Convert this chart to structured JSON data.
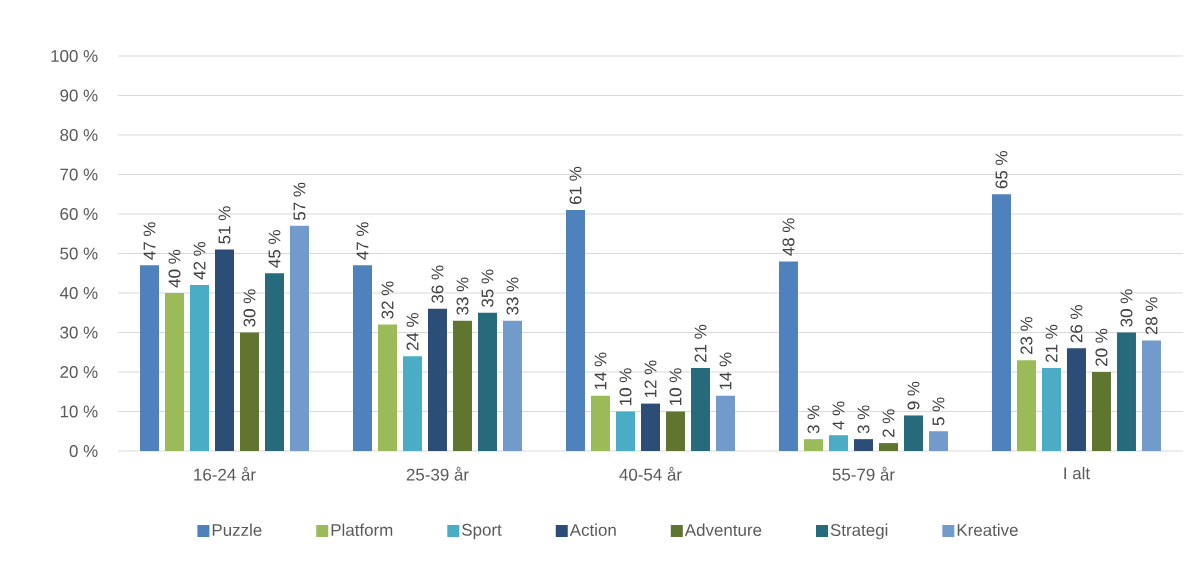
{
  "chart_data": {
    "type": "bar",
    "categories": [
      "16-24 år",
      "25-39 år",
      "40-54 år",
      "55-79 år",
      "I alt"
    ],
    "series": [
      {
        "name": "Puzzle",
        "color": "#4f81bd",
        "values": [
          47,
          47,
          61,
          48,
          65
        ],
        "value_labels": [
          "47 %",
          "47 %",
          "61 %",
          "48 %",
          "65 %"
        ]
      },
      {
        "name": "Platform",
        "color": "#9bbb59",
        "values": [
          40,
          32,
          14,
          3,
          23
        ],
        "value_labels": [
          "40 %",
          "32 %",
          "14 %",
          "3 %",
          "23 %"
        ]
      },
      {
        "name": "Sport",
        "color": "#4bacc6",
        "values": [
          42,
          24,
          10,
          4,
          21
        ],
        "value_labels": [
          "42 %",
          "24 %",
          "10 %",
          "4 %",
          "21 %"
        ]
      },
      {
        "name": "Action",
        "color": "#2c4d75",
        "values": [
          51,
          36,
          12,
          3,
          26
        ],
        "value_labels": [
          "51 %",
          "36 %",
          "12 %",
          "3 %",
          "26 %"
        ]
      },
      {
        "name": "Adventure",
        "color": "#5f7530",
        "values": [
          30,
          33,
          10,
          2,
          20
        ],
        "value_labels": [
          "30 %",
          "33 %",
          "10 %",
          "2 %",
          "20 %"
        ]
      },
      {
        "name": "Strategi",
        "color": "#276a7c",
        "values": [
          45,
          35,
          21,
          9,
          30
        ],
        "value_labels": [
          "45 %",
          "35 %",
          "21 %",
          "9 %",
          "30 %"
        ]
      },
      {
        "name": "Kreative",
        "color": "#729aca",
        "values": [
          57,
          33,
          14,
          5,
          28
        ],
        "value_labels": [
          "57 %",
          "33 %",
          "14 %",
          "5 %",
          "28 %"
        ]
      }
    ],
    "ylim": [
      0,
      100
    ],
    "yticks": [
      {
        "value": 0,
        "label": "0 %"
      },
      {
        "value": 10,
        "label": "10 %"
      },
      {
        "value": 20,
        "label": "20 %"
      },
      {
        "value": 30,
        "label": "30 %"
      },
      {
        "value": 40,
        "label": "40 %"
      },
      {
        "value": 50,
        "label": "50 %"
      },
      {
        "value": 60,
        "label": "60 %"
      },
      {
        "value": 70,
        "label": "70 %"
      },
      {
        "value": 80,
        "label": "80 %"
      },
      {
        "value": 90,
        "label": "90 %"
      },
      {
        "value": 100,
        "label": "100 %"
      }
    ],
    "grid": "y",
    "legend": "bottom"
  }
}
